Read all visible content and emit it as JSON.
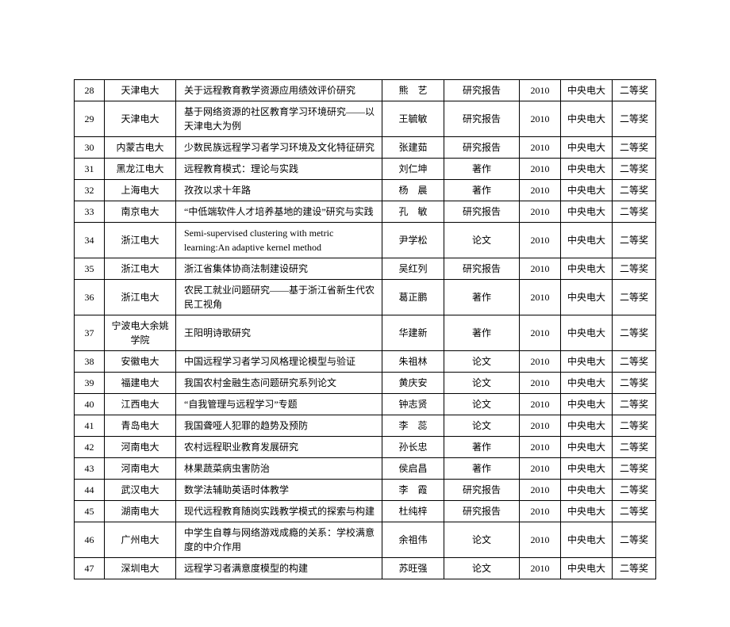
{
  "table": {
    "type": "table",
    "columns": [
      "idx",
      "school",
      "title",
      "author",
      "type",
      "year",
      "org",
      "award"
    ],
    "col_classes": [
      "col-idx",
      "col-school",
      "col-title",
      "col-author",
      "col-type",
      "col-year",
      "col-org",
      "col-award"
    ],
    "font_size_pt": 9,
    "border_color": "#000000",
    "background_color": "#ffffff",
    "rows": [
      {
        "idx": "28",
        "school": "天津电大",
        "title": "关于远程教育教学资源应用绩效评价研究",
        "author": "熊　艺",
        "type": "研究报告",
        "year": "2010",
        "org": "中央电大",
        "award": "二等奖"
      },
      {
        "idx": "29",
        "school": "天津电大",
        "title": "基于网络资源的社区教育学习环境研究——以天津电大为例",
        "author": "王毓敏",
        "type": "研究报告",
        "year": "2010",
        "org": "中央电大",
        "award": "二等奖"
      },
      {
        "idx": "30",
        "school": "内蒙古电大",
        "title": "少数民族远程学习者学习环境及文化特征研究",
        "author": "张建茹",
        "type": "研究报告",
        "year": "2010",
        "org": "中央电大",
        "award": "二等奖"
      },
      {
        "idx": "31",
        "school": "黑龙江电大",
        "title": "远程教育模式：理论与实践",
        "author": "刘仁坤",
        "type": "著作",
        "year": "2010",
        "org": "中央电大",
        "award": "二等奖"
      },
      {
        "idx": "32",
        "school": "上海电大",
        "title": "孜孜以求十年路",
        "author": "杨　晨",
        "type": "著作",
        "year": "2010",
        "org": "中央电大",
        "award": "二等奖"
      },
      {
        "idx": "33",
        "school": "南京电大",
        "title": "“中低端软件人才培养基地的建设”研究与实践",
        "author": "孔　敏",
        "type": "研究报告",
        "year": "2010",
        "org": "中央电大",
        "award": "二等奖"
      },
      {
        "idx": "34",
        "school": "浙江电大",
        "title": "Semi-supervised clustering with metric learning:An adaptive kernel method",
        "author": "尹学松",
        "type": "论文",
        "year": "2010",
        "org": "中央电大",
        "award": "二等奖"
      },
      {
        "idx": "35",
        "school": "浙江电大",
        "title": "浙江省集体协商法制建设研究",
        "author": "吴红列",
        "type": "研究报告",
        "year": "2010",
        "org": "中央电大",
        "award": "二等奖"
      },
      {
        "idx": "36",
        "school": "浙江电大",
        "title": "农民工就业问题研究——基于浙江省新生代农民工视角",
        "author": "葛正鹏",
        "type": "著作",
        "year": "2010",
        "org": "中央电大",
        "award": "二等奖"
      },
      {
        "idx": "37",
        "school": "宁波电大余姚学院",
        "title": "王阳明诗歌研究",
        "author": "华建新",
        "type": "著作",
        "year": "2010",
        "org": "中央电大",
        "award": "二等奖"
      },
      {
        "idx": "38",
        "school": "安徽电大",
        "title": "中国远程学习者学习风格理论模型与验证",
        "author": "朱祖林",
        "type": "论文",
        "year": "2010",
        "org": "中央电大",
        "award": "二等奖"
      },
      {
        "idx": "39",
        "school": "福建电大",
        "title": "我国农村金融生态问题研究系列论文",
        "author": "黄庆安",
        "type": "论文",
        "year": "2010",
        "org": "中央电大",
        "award": "二等奖"
      },
      {
        "idx": "40",
        "school": "江西电大",
        "title": "“自我管理与远程学习”专题",
        "author": "钟志贤",
        "type": "论文",
        "year": "2010",
        "org": "中央电大",
        "award": "二等奖"
      },
      {
        "idx": "41",
        "school": "青岛电大",
        "title": "我国聋哑人犯罪的趋势及预防",
        "author": "李　蕊",
        "type": "论文",
        "year": "2010",
        "org": "中央电大",
        "award": "二等奖"
      },
      {
        "idx": "42",
        "school": "河南电大",
        "title": "农村远程职业教育发展研究",
        "author": "孙长忠",
        "type": "著作",
        "year": "2010",
        "org": "中央电大",
        "award": "二等奖"
      },
      {
        "idx": "43",
        "school": "河南电大",
        "title": "林果蔬菜病虫害防治",
        "author": "侯启昌",
        "type": "著作",
        "year": "2010",
        "org": "中央电大",
        "award": "二等奖"
      },
      {
        "idx": "44",
        "school": "武汉电大",
        "title": "数学法辅助英语时体教学",
        "author": "李　霞",
        "type": "研究报告",
        "year": "2010",
        "org": "中央电大",
        "award": "二等奖"
      },
      {
        "idx": "45",
        "school": "湖南电大",
        "title": "现代远程教育随岗实践教学模式的探索与构建",
        "author": "杜纯梓",
        "type": "研究报告",
        "year": "2010",
        "org": "中央电大",
        "award": "二等奖"
      },
      {
        "idx": "46",
        "school": "广州电大",
        "title": "中学生自尊与网络游戏成瘾的关系：学校满意度的中介作用",
        "author": "余祖伟",
        "type": "论文",
        "year": "2010",
        "org": "中央电大",
        "award": "二等奖"
      },
      {
        "idx": "47",
        "school": "深圳电大",
        "title": "远程学习者满意度模型的构建",
        "author": "苏旺强",
        "type": "论文",
        "year": "2010",
        "org": "中央电大",
        "award": "二等奖"
      }
    ]
  }
}
